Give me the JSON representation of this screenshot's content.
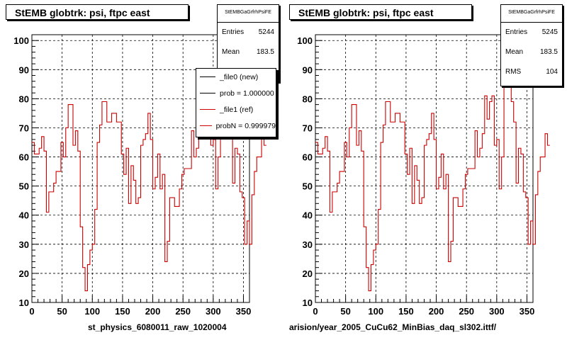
{
  "panels": [
    {
      "title": "StEMB globtrk: psi, ftpc east",
      "stats": {
        "name": "StEMBGaGrfrhPsiFE",
        "rows": [
          {
            "label": "Entries",
            "value": "5244"
          },
          {
            "label": "Mean",
            "value": "183.5"
          },
          {
            "label": "RMS",
            "value": "104"
          }
        ]
      },
      "legend": [
        {
          "label": "_file0 (new)",
          "color": "#000000"
        },
        {
          "label": "prob = 1.000000",
          "color": "#000000"
        },
        {
          "label": "_file1 (ref)",
          "color": "#cc0000"
        },
        {
          "label": "probN = 0.999979",
          "color": "#cc0000"
        }
      ],
      "xtitle": "st_physics_6080011_raw_1020004"
    },
    {
      "title": "StEMB globtrk: psi, ftpc east",
      "stats": {
        "name": "StEMBGaGrfrhPsiFE",
        "rows": [
          {
            "label": "Entries",
            "value": "5245"
          },
          {
            "label": "Mean",
            "value": "183.5"
          },
          {
            "label": "RMS",
            "value": "104"
          }
        ]
      },
      "xtitle": "arision/year_2005_CuCu62_MinBias_daq_sl302.ittf/"
    }
  ],
  "bottom_note": "",
  "chart_data": [
    {
      "type": "line",
      "title": "StEMB globtrk: psi, ftpc east",
      "xlabel": "st_physics_6080011_raw_1020004",
      "ylabel": "",
      "xlim": [
        0,
        360
      ],
      "ylim": [
        10,
        102
      ],
      "xticks": [
        0,
        50,
        100,
        150,
        200,
        250,
        300,
        350
      ],
      "yticks": [
        10,
        20,
        30,
        40,
        50,
        60,
        70,
        80,
        90,
        100
      ],
      "grid": true,
      "series": [
        {
          "name": "_file1 (ref)",
          "color": "#cc0000",
          "step": true,
          "bin_width": 4,
          "values": [
            65,
            61,
            61,
            63,
            67,
            62,
            41,
            48,
            48,
            51,
            55,
            55,
            65,
            60,
            70,
            78,
            78,
            64,
            69,
            62,
            36,
            22,
            14,
            23,
            28,
            30,
            42,
            65,
            71,
            79,
            79,
            72,
            72,
            75,
            75,
            72,
            72,
            61,
            54,
            63,
            44,
            57,
            52,
            44,
            46,
            64,
            66,
            68,
            75,
            66,
            49,
            53,
            61,
            49,
            54,
            24,
            31,
            46,
            46,
            43,
            43,
            49,
            54,
            56,
            56,
            56,
            69,
            60,
            63,
            68,
            81,
            73,
            79,
            81,
            64,
            66,
            49,
            60,
            90,
            90,
            98,
            79,
            72,
            51,
            63,
            61,
            48,
            46,
            30,
            38,
            30,
            47,
            55,
            60,
            60,
            68,
            64
          ]
        }
      ]
    },
    {
      "type": "line",
      "title": "StEMB globtrk: psi, ftpc east",
      "xlabel": "arision/year_2005_CuCu62_MinBias_daq_sl302.ittf/",
      "ylabel": "",
      "xlim": [
        0,
        360
      ],
      "ylim": [
        10,
        102
      ],
      "xticks": [
        0,
        50,
        100,
        150,
        200,
        250,
        300,
        350
      ],
      "yticks": [
        10,
        20,
        30,
        40,
        50,
        60,
        70,
        80,
        90,
        100
      ],
      "grid": true,
      "series": [
        {
          "name": "",
          "color": "#cc0000",
          "step": true,
          "bin_width": 4,
          "values": [
            65,
            61,
            61,
            63,
            67,
            62,
            41,
            48,
            48,
            51,
            55,
            55,
            65,
            60,
            70,
            78,
            78,
            64,
            69,
            62,
            36,
            22,
            14,
            23,
            28,
            30,
            42,
            65,
            71,
            79,
            79,
            72,
            72,
            75,
            75,
            72,
            72,
            61,
            54,
            63,
            44,
            57,
            52,
            44,
            46,
            64,
            66,
            68,
            75,
            66,
            49,
            53,
            61,
            49,
            54,
            24,
            31,
            46,
            46,
            43,
            43,
            49,
            54,
            56,
            56,
            56,
            69,
            60,
            63,
            68,
            81,
            73,
            79,
            81,
            64,
            66,
            49,
            60,
            90,
            90,
            98,
            79,
            72,
            51,
            63,
            61,
            48,
            46,
            30,
            38,
            30,
            47,
            55,
            60,
            60,
            68,
            64
          ]
        }
      ]
    }
  ]
}
